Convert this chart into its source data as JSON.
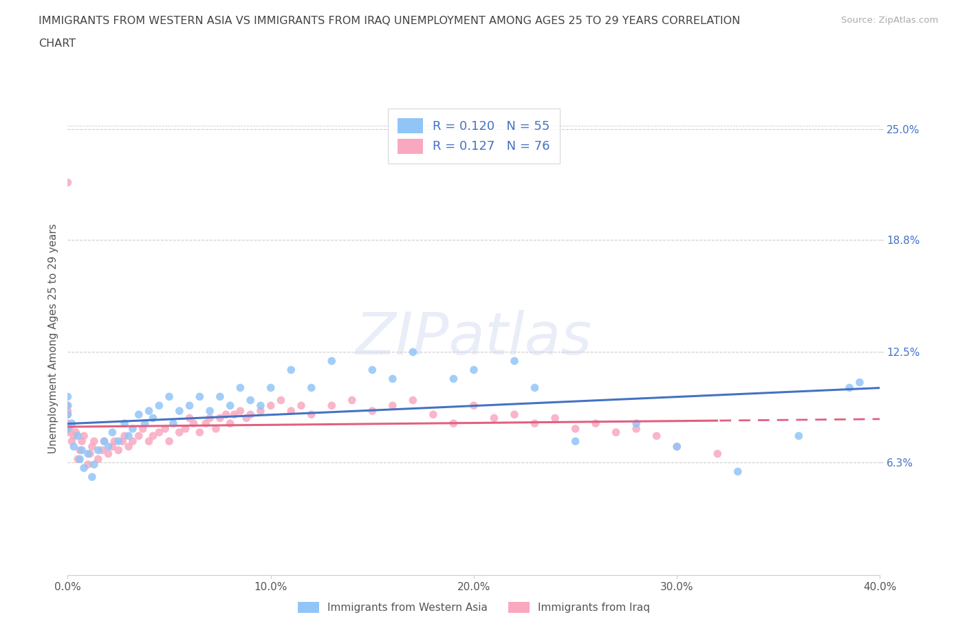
{
  "title_line1": "IMMIGRANTS FROM WESTERN ASIA VS IMMIGRANTS FROM IRAQ UNEMPLOYMENT AMONG AGES 25 TO 29 YEARS CORRELATION",
  "title_line2": "CHART",
  "source_text": "Source: ZipAtlas.com",
  "ylabel": "Unemployment Among Ages 25 to 29 years",
  "xlim": [
    0.0,
    0.4
  ],
  "ylim": [
    0.0,
    0.265
  ],
  "xtick_vals": [
    0.0,
    0.1,
    0.2,
    0.3,
    0.4
  ],
  "xtick_labels": [
    "0.0%",
    "10.0%",
    "20.0%",
    "30.0%",
    "40.0%"
  ],
  "ytick_vals": [
    0.063,
    0.125,
    0.188,
    0.25
  ],
  "ytick_labels": [
    "6.3%",
    "12.5%",
    "18.8%",
    "25.0%"
  ],
  "R1": 0.12,
  "N1": 55,
  "R2": 0.127,
  "N2": 76,
  "color_blue": "#92C5F7",
  "color_pink": "#F9A8C0",
  "line_color_blue": "#4472C4",
  "line_color_pink": "#E06080",
  "background_color": "#FFFFFF",
  "grid_color": "#DDDDDD",
  "title_color": "#444444",
  "western_asia_x": [
    0.0,
    0.0,
    0.0,
    0.0,
    0.002,
    0.003,
    0.005,
    0.006,
    0.007,
    0.008,
    0.01,
    0.012,
    0.013,
    0.015,
    0.018,
    0.02,
    0.022,
    0.025,
    0.028,
    0.03,
    0.032,
    0.035,
    0.038,
    0.04,
    0.042,
    0.045,
    0.05,
    0.052,
    0.055,
    0.06,
    0.065,
    0.07,
    0.075,
    0.08,
    0.085,
    0.09,
    0.095,
    0.1,
    0.11,
    0.12,
    0.13,
    0.15,
    0.16,
    0.17,
    0.19,
    0.2,
    0.22,
    0.23,
    0.25,
    0.28,
    0.3,
    0.33,
    0.36,
    0.385,
    0.39
  ],
  "western_asia_y": [
    0.082,
    0.09,
    0.095,
    0.1,
    0.085,
    0.072,
    0.078,
    0.065,
    0.07,
    0.06,
    0.068,
    0.055,
    0.062,
    0.07,
    0.075,
    0.072,
    0.08,
    0.075,
    0.085,
    0.078,
    0.082,
    0.09,
    0.085,
    0.092,
    0.088,
    0.095,
    0.1,
    0.085,
    0.092,
    0.095,
    0.1,
    0.092,
    0.1,
    0.095,
    0.105,
    0.098,
    0.095,
    0.105,
    0.115,
    0.105,
    0.12,
    0.115,
    0.11,
    0.125,
    0.11,
    0.115,
    0.12,
    0.105,
    0.075,
    0.085,
    0.072,
    0.058,
    0.078,
    0.105,
    0.108
  ],
  "iraq_x": [
    0.0,
    0.0,
    0.0,
    0.0,
    0.0,
    0.0,
    0.001,
    0.002,
    0.003,
    0.004,
    0.005,
    0.006,
    0.007,
    0.008,
    0.01,
    0.011,
    0.012,
    0.013,
    0.015,
    0.017,
    0.018,
    0.02,
    0.022,
    0.023,
    0.025,
    0.027,
    0.028,
    0.03,
    0.032,
    0.035,
    0.037,
    0.04,
    0.042,
    0.045,
    0.048,
    0.05,
    0.055,
    0.058,
    0.06,
    0.062,
    0.065,
    0.068,
    0.07,
    0.073,
    0.075,
    0.078,
    0.08,
    0.082,
    0.085,
    0.088,
    0.09,
    0.095,
    0.1,
    0.105,
    0.11,
    0.115,
    0.12,
    0.13,
    0.14,
    0.15,
    0.16,
    0.17,
    0.18,
    0.19,
    0.2,
    0.21,
    0.22,
    0.23,
    0.24,
    0.25,
    0.26,
    0.27,
    0.28,
    0.29,
    0.3,
    0.32
  ],
  "iraq_y": [
    0.08,
    0.085,
    0.09,
    0.092,
    0.095,
    0.22,
    0.082,
    0.075,
    0.078,
    0.08,
    0.065,
    0.07,
    0.075,
    0.078,
    0.062,
    0.068,
    0.072,
    0.075,
    0.065,
    0.07,
    0.075,
    0.068,
    0.072,
    0.075,
    0.07,
    0.075,
    0.078,
    0.072,
    0.075,
    0.078,
    0.082,
    0.075,
    0.078,
    0.08,
    0.082,
    0.075,
    0.08,
    0.082,
    0.088,
    0.085,
    0.08,
    0.085,
    0.088,
    0.082,
    0.088,
    0.09,
    0.085,
    0.09,
    0.092,
    0.088,
    0.09,
    0.092,
    0.095,
    0.098,
    0.092,
    0.095,
    0.09,
    0.095,
    0.098,
    0.092,
    0.095,
    0.098,
    0.09,
    0.085,
    0.095,
    0.088,
    0.09,
    0.085,
    0.088,
    0.082,
    0.085,
    0.08,
    0.082,
    0.078,
    0.072,
    0.068
  ]
}
